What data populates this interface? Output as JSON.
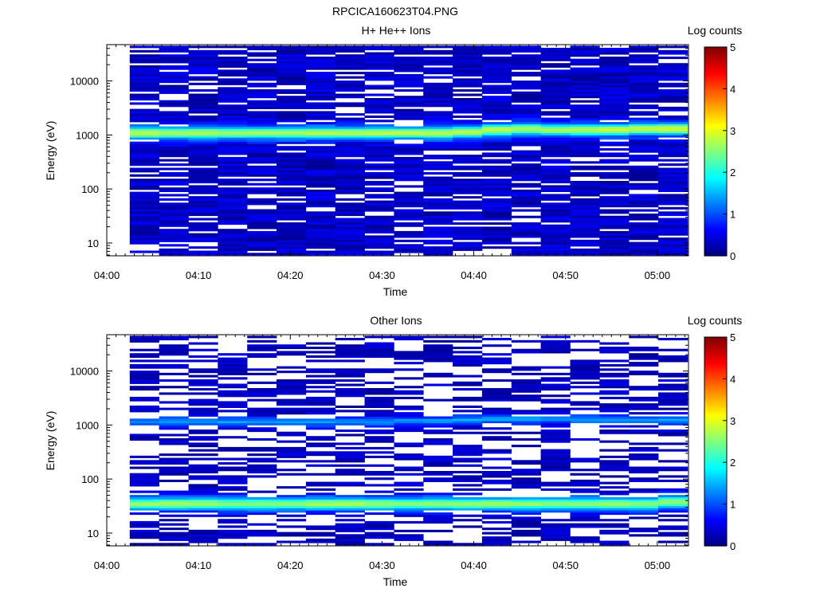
{
  "title": "RPCICA160623T04.PNG",
  "colorbar": {
    "label": "Log counts",
    "ticks": [
      "0",
      "1",
      "2",
      "3",
      "4",
      "5"
    ],
    "range": [
      0,
      5
    ],
    "colormap": "jet"
  },
  "chart_data": [
    {
      "type": "heatmap",
      "title": "H+ He++ Ions",
      "xlabel": "Time",
      "ylabel": "Energy (eV)",
      "x_ticks": [
        "04:00",
        "04:10",
        "04:20",
        "04:30",
        "04:40",
        "04:50",
        "05:00"
      ],
      "x_range_minutes": [
        0,
        63.4
      ],
      "y_scale": "log",
      "y_range_eV": [
        5.8,
        47000
      ],
      "y_ticks": [
        "10",
        "100",
        "1000",
        "10000"
      ],
      "time_bins_minutes": [
        2.5,
        5.7,
        8.9,
        12.1,
        15.3,
        18.5,
        21.7,
        24.9,
        28.1,
        31.3,
        34.5,
        37.7,
        40.9,
        44.1,
        47.3,
        50.5,
        53.7,
        56.9,
        60.1
      ],
      "energy_coverage_eV": [
        6,
        45000
      ],
      "band_peak_eV": [
        1100,
        1100,
        1100,
        1100,
        1100,
        1100,
        1100,
        1100,
        1100,
        1100,
        1100,
        1150,
        1250,
        1300,
        1250,
        1250,
        1250,
        1300,
        1300
      ],
      "band_peak_log_counts": [
        2.9,
        2.8,
        2.8,
        2.7,
        2.7,
        2.7,
        2.8,
        2.8,
        2.8,
        2.8,
        2.8,
        2.8,
        2.9,
        2.8,
        2.7,
        2.8,
        2.9,
        2.9,
        3.0
      ],
      "background_log_counts": [
        0.1,
        0.6
      ],
      "colorbar_label": "Log counts"
    },
    {
      "type": "heatmap",
      "title": "Other Ions",
      "xlabel": "Time",
      "ylabel": "Energy (eV)",
      "x_ticks": [
        "04:00",
        "04:10",
        "04:20",
        "04:30",
        "04:40",
        "04:50",
        "05:00"
      ],
      "x_range_minutes": [
        0,
        63.4
      ],
      "y_scale": "log",
      "y_range_eV": [
        5.8,
        47000
      ],
      "y_ticks": [
        "10",
        "100",
        "1000",
        "10000"
      ],
      "time_bins_minutes": [
        2.5,
        5.7,
        8.9,
        12.1,
        15.3,
        18.5,
        21.7,
        24.9,
        28.1,
        31.3,
        34.5,
        37.7,
        40.9,
        44.1,
        47.3,
        50.5,
        53.7,
        56.9,
        60.1
      ],
      "energy_coverage_eV": [
        6,
        45000
      ],
      "bands": [
        {
          "peak_eV": [
            35,
            35,
            35,
            35,
            35,
            35,
            35,
            35,
            35,
            35,
            35,
            35,
            35,
            35,
            35,
            35,
            35,
            35,
            38
          ],
          "peak_log_counts": [
            2.6,
            2.7,
            2.7,
            2.6,
            2.6,
            2.6,
            2.7,
            2.7,
            2.6,
            2.6,
            2.6,
            2.6,
            2.7,
            2.6,
            2.6,
            2.6,
            2.6,
            2.6,
            2.6
          ]
        },
        {
          "peak_eV": [
            1150,
            1150,
            1150,
            1150,
            1150,
            1150,
            1150,
            1150,
            1150,
            1200,
            1200,
            1250,
            1300,
            1300,
            1300,
            1250,
            1250,
            1250,
            1250
          ],
          "peak_log_counts": [
            1.3,
            1.4,
            1.4,
            1.4,
            1.4,
            1.4,
            1.4,
            1.4,
            1.4,
            1.4,
            1.4,
            1.5,
            1.5,
            1.4,
            1.4,
            1.4,
            1.4,
            1.4,
            1.4
          ]
        }
      ],
      "background_log_counts": [
        0.1,
        0.5
      ],
      "colorbar_label": "Log counts"
    }
  ]
}
